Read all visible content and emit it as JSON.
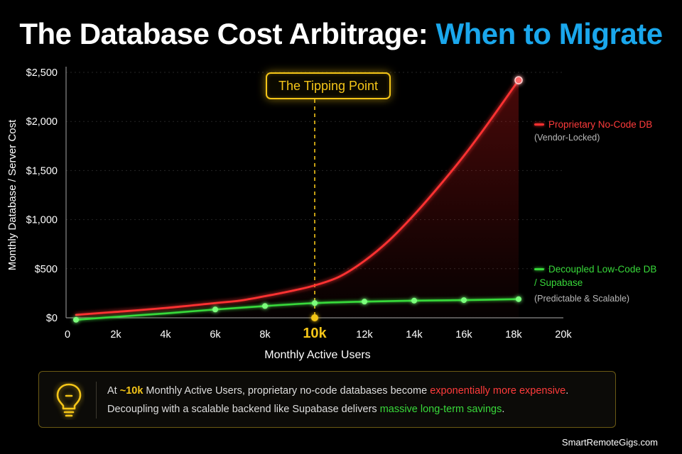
{
  "title": {
    "main": "The Database Cost Arbitrage:",
    "highlight": "When to Migrate"
  },
  "colors": {
    "proprietary": "#ff3030",
    "decoupled": "#38d93a",
    "tipping": "#f4c518",
    "highlight": "#1aa7ec"
  },
  "chart_data": {
    "type": "line",
    "xlabel": "Monthly Active Users",
    "ylabel": "Monthly Database / Server Cost",
    "xlim": [
      0,
      20000
    ],
    "ylim": [
      0,
      2500
    ],
    "x_ticks": [
      {
        "value": 0,
        "label": "0"
      },
      {
        "value": 2000,
        "label": "2k"
      },
      {
        "value": 4000,
        "label": "4k"
      },
      {
        "value": 6000,
        "label": "6k"
      },
      {
        "value": 8000,
        "label": "8k"
      },
      {
        "value": 10000,
        "label": "10k",
        "highlight": true
      },
      {
        "value": 12000,
        "label": "12k"
      },
      {
        "value": 14000,
        "label": "14k"
      },
      {
        "value": 16000,
        "label": "16k"
      },
      {
        "value": 18000,
        "label": "18k"
      },
      {
        "value": 20000,
        "label": "20k"
      }
    ],
    "y_ticks": [
      {
        "value": 0,
        "label": "$0"
      },
      {
        "value": 500,
        "label": "$500"
      },
      {
        "value": 1000,
        "label": "$1,000"
      },
      {
        "value": 1500,
        "label": "$1,500"
      },
      {
        "value": 2000,
        "label": "$2,000"
      },
      {
        "value": 2500,
        "label": "$2,500"
      }
    ],
    "grid": true,
    "annotation": {
      "label": "The Tipping Point",
      "x": 10000
    },
    "series": [
      {
        "name": "Proprietary No-Code DB",
        "subtitle": "(Vendor-Locked)",
        "color": "#ff3030",
        "points": [
          [
            400,
            30
          ],
          [
            2000,
            60
          ],
          [
            4000,
            100
          ],
          [
            6000,
            150
          ],
          [
            7000,
            175
          ],
          [
            8000,
            220
          ],
          [
            9000,
            270
          ],
          [
            10000,
            330
          ],
          [
            11000,
            420
          ],
          [
            12000,
            580
          ],
          [
            13000,
            790
          ],
          [
            14000,
            1050
          ],
          [
            15000,
            1340
          ],
          [
            16000,
            1650
          ],
          [
            17000,
            1990
          ],
          [
            18200,
            2420
          ]
        ],
        "markers": [
          [
            18200,
            2420
          ]
        ]
      },
      {
        "name": "Decoupled Low-Code DB / Supabase",
        "name_line1": "Decoupled Low-Code DB",
        "name_line2": "/ Supabase",
        "subtitle": "(Predictable & Scalable)",
        "color": "#38d93a",
        "points": [
          [
            400,
            -20
          ],
          [
            2000,
            10
          ],
          [
            4000,
            45
          ],
          [
            6000,
            85
          ],
          [
            8000,
            120
          ],
          [
            10000,
            150
          ],
          [
            12000,
            165
          ],
          [
            14000,
            175
          ],
          [
            16000,
            180
          ],
          [
            18200,
            190
          ]
        ],
        "markers": [
          [
            400,
            -20
          ],
          [
            6000,
            85
          ],
          [
            8000,
            120
          ],
          [
            10000,
            150
          ],
          [
            12000,
            165
          ],
          [
            14000,
            175
          ],
          [
            16000,
            180
          ],
          [
            18200,
            190
          ]
        ]
      }
    ]
  },
  "info": {
    "l1_a": "At ",
    "l1_b": "~10k",
    "l1_c": " Monthly Active Users, proprietary no-code databases become ",
    "l1_d": "exponentially more expensive",
    "l1_e": ".",
    "l2_a": "Decoupling with a scalable backend like Supabase delivers ",
    "l2_b": "massive long-term savings",
    "l2_c": "."
  },
  "footer": "SmartRemoteGigs.com"
}
